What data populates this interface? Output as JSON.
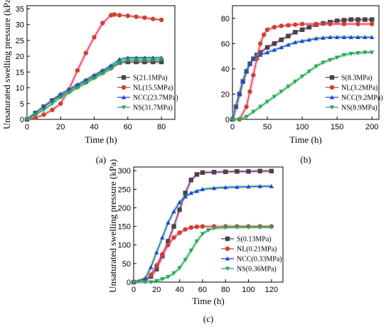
{
  "colors": {
    "S": "#444444",
    "NL": "#d1402b",
    "NCC": "#2243e6",
    "NS": "#2e9e6a",
    "S_glow": "#ff44cc",
    "NL_glow": "#ff66cc",
    "NCC_glow": "#44dd44",
    "NS_glow": "#44dd44"
  },
  "chart_data": [
    {
      "type": "line",
      "panel_label": "(a)",
      "xlabel": "Time (h)",
      "ylabel": "Unsaturated swelling pressure (kPa)",
      "xlim": [
        0,
        88
      ],
      "ylim": [
        0,
        36
      ],
      "xticks": [
        0,
        20,
        40,
        60,
        80
      ],
      "yticks": [
        0,
        5,
        10,
        15,
        20,
        25,
        30,
        35
      ],
      "legend_position": "bottom-right",
      "series": [
        {
          "name": "S(21.1MPa)",
          "marker": "square",
          "x": [
            0,
            5,
            10,
            15,
            20,
            25,
            30,
            35,
            40,
            45,
            50,
            55,
            60,
            65,
            70,
            75,
            80
          ],
          "y": [
            0,
            2,
            4,
            6,
            7.5,
            9,
            10.5,
            12,
            13.5,
            15,
            16.5,
            18,
            18.2,
            18.2,
            18.2,
            18.2,
            18.2
          ]
        },
        {
          "name": "NL(15.5MPa)",
          "marker": "circle",
          "x": [
            0,
            5,
            10,
            15,
            20,
            25,
            30,
            35,
            40,
            45,
            50,
            52,
            55,
            60,
            65,
            70,
            75,
            80
          ],
          "y": [
            0,
            0.5,
            1.5,
            3,
            5,
            9.5,
            15.5,
            21,
            26,
            30.5,
            33,
            33.2,
            33,
            32.8,
            32.5,
            32.2,
            31.8,
            31.5
          ]
        },
        {
          "name": "NCC(23.7MPa)",
          "marker": "triangle-up",
          "x": [
            0,
            5,
            10,
            15,
            20,
            25,
            30,
            35,
            40,
            45,
            50,
            55,
            60,
            65,
            70,
            75,
            80
          ],
          "y": [
            0,
            2,
            4,
            6,
            8,
            9.5,
            11,
            12.5,
            14,
            15.5,
            17,
            19,
            19.5,
            19.5,
            19.5,
            19.5,
            19.5
          ]
        },
        {
          "name": "NS(31.7MPa)",
          "marker": "triangle-down",
          "x": [
            0,
            5,
            10,
            15,
            20,
            25,
            30,
            35,
            40,
            45,
            50,
            55,
            60,
            65,
            70,
            75,
            80
          ],
          "y": [
            0,
            1.5,
            3,
            5,
            7,
            8.5,
            10,
            11.5,
            13,
            14.5,
            16,
            18,
            18.8,
            18.8,
            18.8,
            18.8,
            19
          ]
        }
      ]
    },
    {
      "type": "line",
      "panel_label": "(b)",
      "xlabel": "Time (h)",
      "ylabel": "",
      "xlim": [
        0,
        210
      ],
      "ylim": [
        0,
        90
      ],
      "xticks": [
        0,
        50,
        100,
        150,
        200
      ],
      "yticks": [
        0,
        20,
        40,
        60,
        80
      ],
      "legend_position": "bottom-right",
      "series": [
        {
          "name": "S(8.3MPa)",
          "marker": "square",
          "x": [
            0,
            5,
            10,
            15,
            20,
            25,
            30,
            35,
            40,
            50,
            60,
            70,
            80,
            90,
            100,
            110,
            120,
            130,
            140,
            150,
            160,
            170,
            180,
            190,
            200
          ],
          "y": [
            0,
            10,
            20,
            30,
            38,
            44,
            48,
            51,
            53,
            57,
            60,
            63,
            66,
            69,
            71,
            73,
            75,
            76,
            77,
            78,
            78.5,
            79,
            79,
            79,
            79
          ]
        },
        {
          "name": "NL(3.2MPa)",
          "marker": "circle",
          "x": [
            0,
            10,
            20,
            25,
            30,
            35,
            40,
            45,
            50,
            60,
            70,
            80,
            90,
            100,
            120,
            140,
            160,
            180,
            200
          ],
          "y": [
            0,
            0,
            10,
            22,
            35,
            48,
            60,
            67,
            71,
            73,
            74,
            74.5,
            75,
            75.5,
            75.5,
            75.5,
            75.5,
            75.5,
            75.5
          ]
        },
        {
          "name": "NCC(9.2MPa)",
          "marker": "triangle-up",
          "x": [
            0,
            5,
            10,
            15,
            20,
            25,
            30,
            40,
            50,
            60,
            70,
            80,
            90,
            100,
            110,
            120,
            130,
            140,
            150,
            160,
            170,
            180,
            190,
            200
          ],
          "y": [
            0,
            10,
            20,
            30,
            38,
            44,
            48,
            51,
            53,
            55,
            57,
            59,
            61,
            62,
            63,
            64,
            64.5,
            65,
            65,
            65,
            65,
            65,
            65,
            65
          ]
        },
        {
          "name": "NS(8.9MPa)",
          "marker": "triangle-down",
          "x": [
            0,
            10,
            20,
            30,
            40,
            50,
            60,
            70,
            80,
            90,
            100,
            110,
            120,
            130,
            140,
            150,
            160,
            170,
            180,
            190,
            200
          ],
          "y": [
            0,
            0,
            2,
            6,
            10,
            14,
            18,
            22,
            26,
            30,
            34,
            38,
            42,
            45,
            47,
            49,
            51,
            52,
            52.5,
            53,
            53
          ]
        }
      ]
    },
    {
      "type": "line",
      "panel_label": "(c)",
      "xlabel": "Time (h)",
      "ylabel": "Unsaturated swelling pressure (kPa)",
      "xlim": [
        0,
        130
      ],
      "ylim": [
        0,
        310
      ],
      "xticks": [
        0,
        20,
        40,
        60,
        80,
        100,
        120
      ],
      "yticks": [
        0,
        50,
        100,
        150,
        200,
        250,
        300
      ],
      "legend_position": "bottom-right",
      "series": [
        {
          "name": "S(0.13MPa)",
          "marker": "square",
          "x": [
            0,
            10,
            15,
            20,
            25,
            30,
            35,
            40,
            45,
            50,
            55,
            60,
            70,
            80,
            90,
            100,
            110,
            120
          ],
          "y": [
            0,
            5,
            15,
            35,
            70,
            110,
            150,
            195,
            240,
            275,
            290,
            295,
            296,
            297,
            298,
            298,
            299,
            299
          ]
        },
        {
          "name": "NL(0.21MPa)",
          "marker": "circle",
          "x": [
            0,
            10,
            15,
            20,
            25,
            30,
            35,
            40,
            45,
            50,
            55,
            60,
            70,
            80,
            90,
            100,
            110,
            120
          ],
          "y": [
            0,
            5,
            20,
            45,
            75,
            100,
            120,
            133,
            142,
            147,
            149,
            150,
            150,
            150,
            150,
            150,
            150,
            150
          ]
        },
        {
          "name": "NCC(0.33MPa)",
          "marker": "triangle-up",
          "x": [
            0,
            10,
            15,
            20,
            25,
            30,
            35,
            40,
            45,
            50,
            55,
            60,
            70,
            80,
            90,
            100,
            110,
            120
          ],
          "y": [
            0,
            10,
            40,
            80,
            120,
            160,
            190,
            215,
            230,
            240,
            245,
            250,
            253,
            255,
            256,
            257,
            258,
            258
          ]
        },
        {
          "name": "NS(0.36MPa)",
          "marker": "triangle-down",
          "x": [
            0,
            10,
            15,
            20,
            25,
            30,
            35,
            40,
            45,
            50,
            55,
            60,
            65,
            70,
            80,
            90,
            100,
            110,
            120
          ],
          "y": [
            0,
            0,
            0,
            3,
            8,
            14,
            24,
            38,
            60,
            85,
            110,
            130,
            140,
            145,
            147,
            148,
            148,
            148,
            148
          ]
        }
      ]
    }
  ]
}
